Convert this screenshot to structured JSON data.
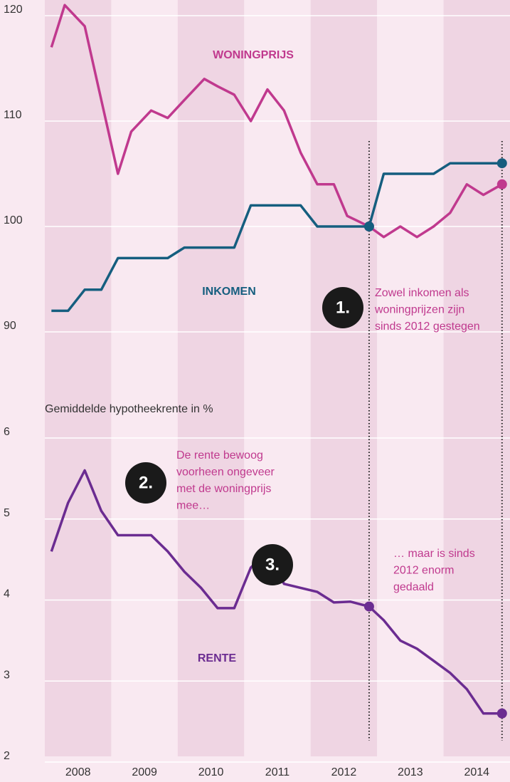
{
  "chart_data": [
    {
      "type": "line",
      "xlim": [
        2008,
        2015
      ],
      "xticks": [
        2008,
        2009,
        2010,
        2011,
        2012,
        2013,
        2014
      ],
      "ylim": [
        90,
        120
      ],
      "yticks": [
        90,
        100,
        110,
        120
      ],
      "grid": true,
      "vlines": [
        2012.88,
        2014.88
      ],
      "series": [
        {
          "name": "WONINGPRIJS",
          "color": "#c0398e",
          "x": [
            2008.1,
            2008.3,
            2008.6,
            2008.85,
            2009.1,
            2009.3,
            2009.6,
            2009.85,
            2010.1,
            2010.4,
            2010.6,
            2010.85,
            2011.1,
            2011.35,
            2011.6,
            2011.85,
            2012.1,
            2012.35,
            2012.55,
            2012.88,
            2013.1,
            2013.35,
            2013.6,
            2013.85,
            2014.1,
            2014.35,
            2014.6,
            2014.88
          ],
          "values": [
            117,
            121,
            119,
            112,
            105,
            109,
            111,
            110.3,
            112,
            114,
            113.3,
            112.5,
            110,
            113,
            111,
            107,
            104,
            104,
            101,
            100,
            99,
            100,
            99,
            100,
            101.3,
            104,
            103,
            104
          ]
        },
        {
          "name": "INKOMEN",
          "color": "#155e7f",
          "x": [
            2008.1,
            2008.35,
            2008.6,
            2008.85,
            2009.1,
            2009.35,
            2009.85,
            2010.1,
            2010.35,
            2010.85,
            2011.1,
            2011.35,
            2011.85,
            2012.1,
            2012.35,
            2012.88,
            2013.1,
            2013.35,
            2013.85,
            2014.1,
            2014.35,
            2014.88
          ],
          "values": [
            92,
            92,
            94,
            94,
            97,
            97,
            97,
            98,
            98,
            98,
            102,
            102,
            102,
            100,
            100,
            100,
            105,
            105,
            105,
            106,
            106,
            106
          ]
        }
      ],
      "annotations": [
        {
          "number": "1.",
          "lines": [
            "Zowel inkomen als",
            "woningprijzen zijn",
            "sinds 2012 gestegen"
          ]
        }
      ]
    },
    {
      "type": "line",
      "xlim": [
        2008,
        2015
      ],
      "xticks": [
        2008,
        2009,
        2010,
        2011,
        2012,
        2013,
        2014
      ],
      "ylim": [
        2,
        6
      ],
      "yticks": [
        2,
        3,
        4,
        5,
        6
      ],
      "grid": true,
      "ylabel": "Gemiddelde hypotheekrente in %",
      "vlines": [
        2012.88,
        2014.88
      ],
      "series": [
        {
          "name": "RENTE",
          "color": "#6b2c91",
          "x": [
            2008.1,
            2008.35,
            2008.6,
            2008.85,
            2009.1,
            2009.35,
            2009.6,
            2009.85,
            2010.1,
            2010.35,
            2010.6,
            2010.85,
            2011.1,
            2011.35,
            2011.6,
            2011.85,
            2012.1,
            2012.35,
            2012.6,
            2012.88,
            2013.1,
            2013.35,
            2013.6,
            2013.85,
            2014.1,
            2014.35,
            2014.6,
            2014.88
          ],
          "values": [
            4.6,
            5.2,
            5.6,
            5.1,
            4.8,
            4.8,
            4.8,
            4.6,
            4.35,
            4.15,
            3.9,
            3.9,
            4.4,
            4.6,
            4.2,
            4.15,
            4.1,
            3.97,
            3.98,
            3.92,
            3.75,
            3.5,
            3.4,
            3.25,
            3.1,
            2.9,
            2.6,
            2.6
          ]
        }
      ],
      "annotations": [
        {
          "number": "2.",
          "lines": [
            "De rente bewoog",
            "voorheen ongeveer",
            "met de woningprijs",
            "mee…"
          ]
        },
        {
          "number": "3.",
          "lines": [
            "… maar is sinds",
            "2012 enorm",
            "gedaald"
          ]
        }
      ]
    }
  ]
}
